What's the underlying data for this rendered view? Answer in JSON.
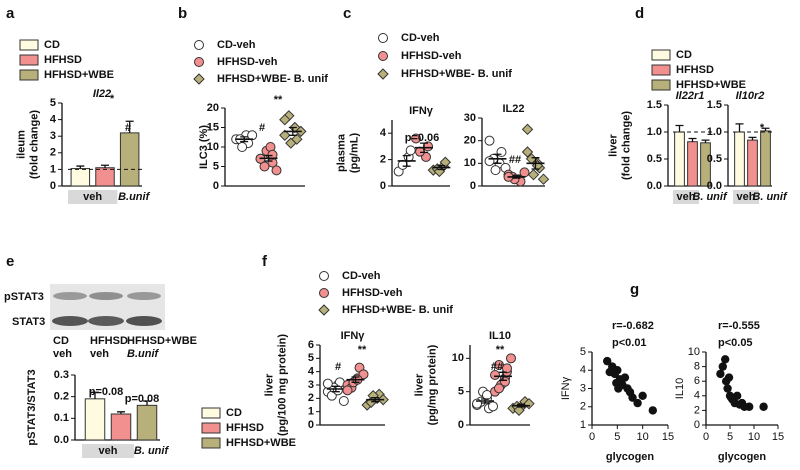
{
  "panel_labels": [
    "a",
    "b",
    "c",
    "d",
    "e",
    "f",
    "g"
  ],
  "blot": {
    "rows": [
      "pSTAT3",
      "STAT3"
    ],
    "lanes": [
      [
        "CD",
        "veh"
      ],
      [
        "HFHSD",
        "veh"
      ],
      [
        "HFHSD+WBE",
        "B.unif"
      ]
    ]
  },
  "chart_data": [
    {
      "type": "bar",
      "ref_line": 1,
      "series": [
        {
          "name": "CD",
          "color": "#fffbe1",
          "values": [
            1.05
          ],
          "errors": [
            0.15
          ]
        },
        {
          "name": "HFHSD",
          "color": "#f28f8f",
          "values": [
            1.1
          ],
          "errors": [
            0.15
          ]
        },
        {
          "name": "HFHSD+WBE",
          "color": "#b8b07a",
          "values": [
            3.2
          ],
          "errors": [
            0.7
          ]
        }
      ],
      "panels": [
        {
          "title": "Il22",
          "ylabel": [
            "ileum",
            "(fold change)"
          ],
          "ylim": [
            0,
            5
          ],
          "yticks": [
            0,
            1,
            2,
            3,
            4,
            5
          ],
          "group_labels": [
            "veh",
            "B.unif"
          ],
          "annotations": [
            "*",
            "#"
          ]
        }
      ]
    },
    {
      "type": "dot",
      "series": [
        {
          "name": "CD-veh",
          "color": "#ffffff",
          "marker": "circle",
          "values": [
            [
              12,
              13,
              11,
              12,
              10,
              13
            ]
          ],
          "means": [
            12
          ],
          "errors": [
            0.6
          ]
        },
        {
          "name": "HFHSD-veh",
          "color": "#f28f8f",
          "marker": "circle",
          "values": [
            [
              7,
              8,
              6,
              5,
              9,
              4,
              7,
              10,
              8
            ]
          ],
          "means": [
            7.1
          ],
          "errors": [
            0.7
          ]
        },
        {
          "name": "HFHSD+WBE- B. unif",
          "color": "#b8b07a",
          "marker": "diamond",
          "values": [
            [
              13,
              15,
              12,
              18,
              11,
              14,
              17
            ]
          ],
          "means": [
            14
          ],
          "errors": [
            1
          ]
        }
      ],
      "panels": [
        {
          "title": null,
          "ylabel": [
            "ILC3 (%)"
          ],
          "ylim": [
            0,
            20
          ],
          "yticks": [
            0,
            5,
            10,
            15,
            20
          ],
          "annotations": [
            "**",
            "#"
          ]
        }
      ]
    },
    {
      "type": "dot",
      "series": [
        {
          "name": "CD-veh",
          "color": "#ffffff",
          "marker": "circle",
          "values": [
            [
              1.1,
              2.2,
              2.7,
              1.6
            ],
            [
              20,
              10,
              15,
              12,
              7,
              8,
              11
            ]
          ],
          "means": [
            1.9,
            12
          ],
          "errors": [
            0.4,
            2
          ]
        },
        {
          "name": "HFHSD-veh",
          "color": "#f28f8f",
          "marker": "circle",
          "values": [
            [
              3.6,
              2.2,
              3.0,
              2.6
            ],
            [
              5,
              3,
              2,
              4,
              3,
              6,
              4
            ]
          ],
          "means": [
            2.9,
            4
          ],
          "errors": [
            0.35,
            0.5
          ]
        },
        {
          "name": "HFHSD+WBE- B. unif",
          "color": "#b8b07a",
          "marker": "diamond",
          "values": [
            [
              1.2,
              1.5,
              1.8,
              1.3,
              1.1
            ],
            [
              25,
              10,
              8,
              12,
              5,
              3,
              15,
              9
            ]
          ],
          "means": [
            1.4,
            10
          ],
          "errors": [
            0.15,
            2.5
          ]
        }
      ],
      "panels": [
        {
          "title": "IFNγ",
          "ylabel": [
            "plasma",
            "(pg/mL)"
          ],
          "ylim": [
            0,
            5
          ],
          "yticks": [
            0,
            2,
            4
          ],
          "annotations": [
            "p=0.06"
          ]
        },
        {
          "title": "IL22",
          "ylim": [
            0,
            30
          ],
          "yticks": [
            0,
            10,
            20,
            30
          ],
          "annotations": [
            "##"
          ]
        }
      ]
    },
    {
      "type": "bar",
      "ref_line": 1,
      "series": [
        {
          "name": "CD",
          "color": "#fffbe1",
          "values": [
            1.0,
            1.0
          ],
          "errors": [
            0.12,
            0.15
          ]
        },
        {
          "name": "HFHSD",
          "color": "#f28f8f",
          "values": [
            0.82,
            0.85
          ],
          "errors": [
            0.06,
            0.05
          ]
        },
        {
          "name": "HFHSD+WBE",
          "color": "#b8b07a",
          "values": [
            0.8,
            1.02
          ],
          "errors": [
            0.05,
            0.05
          ]
        }
      ],
      "panels": [
        {
          "title": "Il22r1",
          "ylabel": [
            "liver",
            "(fold change)"
          ],
          "ylim": [
            0,
            1.5
          ],
          "yticks": [
            {
              "value": 0,
              "label": "0.0"
            },
            {
              "value": 0.5,
              "label": "0.5"
            },
            {
              "value": 1,
              "label": "1.0"
            },
            {
              "value": 1.5,
              "label": "1.5"
            }
          ],
          "group_labels": [
            "veh",
            "B. unif"
          ],
          "annotations": []
        },
        {
          "title": "Il10r2",
          "ylim": [
            0,
            1.5
          ],
          "yticks": [
            {
              "value": 0,
              "label": "0.0"
            },
            {
              "value": 0.5,
              "label": "0.5"
            },
            {
              "value": 1,
              "label": "1.0"
            },
            {
              "value": 1.5,
              "label": "1.5"
            }
          ],
          "group_labels": [
            "veh",
            "B. unif"
          ],
          "annotations": [
            "*"
          ]
        }
      ]
    },
    {
      "type": "bar",
      "series": [
        {
          "name": "CD",
          "color": "#fffbe1",
          "values": [
            0.19
          ],
          "errors": [
            0.03
          ]
        },
        {
          "name": "HFHSD",
          "color": "#f28f8f",
          "values": [
            0.12
          ],
          "errors": [
            0.01
          ]
        },
        {
          "name": "HFHSD+WBE",
          "color": "#b8b07a",
          "values": [
            0.16
          ],
          "errors": [
            0.02
          ]
        }
      ],
      "panels": [
        {
          "title": null,
          "ylabel": [
            "pSTAT3/STAT3"
          ],
          "ylim": [
            0,
            0.3
          ],
          "yticks": [
            {
              "value": 0,
              "label": "0.0"
            },
            {
              "value": 0.1,
              "label": "0.1"
            },
            {
              "value": 0.2,
              "label": "0.2"
            },
            {
              "value": 0.3,
              "label": "0.3"
            }
          ],
          "group_labels": [
            "veh",
            "B. unif"
          ],
          "annotations": [
            "p=0.08",
            "p=0.08"
          ]
        }
      ]
    },
    {
      "type": "dot",
      "series": [
        {
          "name": "CD-veh",
          "color": "#ffffff",
          "marker": "circle",
          "values": [
            [
              2.5,
              3.0,
              3.2,
              2.2,
              2.8,
              1.8,
              3.1,
              2.6
            ],
            [
              3,
              4,
              2.5,
              3.5,
              5,
              2.8,
              3.2,
              4.5
            ]
          ],
          "means": [
            2.7,
            3.6
          ],
          "errors": [
            0.2,
            0.3
          ]
        },
        {
          "name": "HFHSD-veh",
          "color": "#f28f8f",
          "marker": "circle",
          "values": [
            [
              3.0,
              3.5,
              4.3,
              2.8,
              3.2,
              3.8,
              2.6,
              3.4
            ],
            [
              5,
              7,
              8,
              9,
              6,
              10,
              7.5,
              6.5,
              8.5,
              5.5
            ]
          ],
          "means": [
            3.4,
            7.3
          ],
          "errors": [
            0.2,
            0.6
          ]
        },
        {
          "name": "HFHSD+WBE- B. unif",
          "color": "#b8b07a",
          "marker": "diamond",
          "values": [
            [
              1.5,
              2.0,
              2.3,
              1.7,
              2.2,
              1.9
            ],
            [
              2.5,
              3,
              3.5,
              2.8,
              2.2,
              3.2
            ]
          ],
          "means": [
            1.9,
            2.9
          ],
          "errors": [
            0.15,
            0.2
          ]
        }
      ],
      "panels": [
        {
          "title": "IFNγ",
          "ylabel": [
            "liver",
            "(pg/100 mg protein)"
          ],
          "ylim": [
            0,
            6
          ],
          "yticks": [
            0,
            1,
            2,
            3,
            4,
            5,
            6
          ],
          "annotations": [
            "**",
            "#"
          ]
        },
        {
          "title": "IL10",
          "ylabel": [
            "liver",
            "(pg/mg protein)"
          ],
          "ylim": [
            0,
            12
          ],
          "yticks": [
            0,
            5,
            10
          ],
          "annotations": [
            "**",
            "##"
          ]
        }
      ]
    },
    {
      "type": "scatter",
      "xlabel": "glycogen",
      "ylabel": "IFNγ",
      "color": "#111111",
      "xlim": [
        0,
        15
      ],
      "xticks": [
        0,
        5,
        10,
        15
      ],
      "ylim": [
        1,
        5
      ],
      "yticks": [
        1,
        2,
        3,
        4,
        5
      ],
      "x": [
        3,
        4,
        4.5,
        5,
        5.5,
        6,
        6.5,
        7,
        7.5,
        8,
        9,
        10,
        12,
        3.5,
        4.8,
        5.2
      ],
      "y": [
        4.5,
        4.2,
        3.8,
        4,
        3.5,
        3.2,
        3.6,
        3,
        2.8,
        2.5,
        2.2,
        2.6,
        1.8,
        3.9,
        3.3,
        3.0
      ],
      "annotations": [
        "r=-0.682",
        "p<0.01"
      ]
    },
    {
      "type": "scatter",
      "xlabel": "glycogen",
      "ylabel": "IL10",
      "color": "#111111",
      "xlim": [
        0,
        15
      ],
      "xticks": [
        0,
        5,
        10,
        15
      ],
      "ylim": [
        0,
        10
      ],
      "yticks": [
        0,
        2,
        4,
        6,
        8,
        10
      ],
      "x": [
        3,
        3.5,
        4,
        4.2,
        4.5,
        5,
        5.5,
        6,
        6.5,
        7,
        7.5,
        8,
        9,
        12,
        4.8,
        5.2
      ],
      "y": [
        7,
        8,
        9,
        6,
        5,
        4,
        3.5,
        3,
        4,
        2.8,
        3,
        2.5,
        2.5,
        2.5,
        6.5,
        3.8
      ],
      "annotations": [
        "r=-0.555",
        "p<0.05"
      ]
    }
  ]
}
